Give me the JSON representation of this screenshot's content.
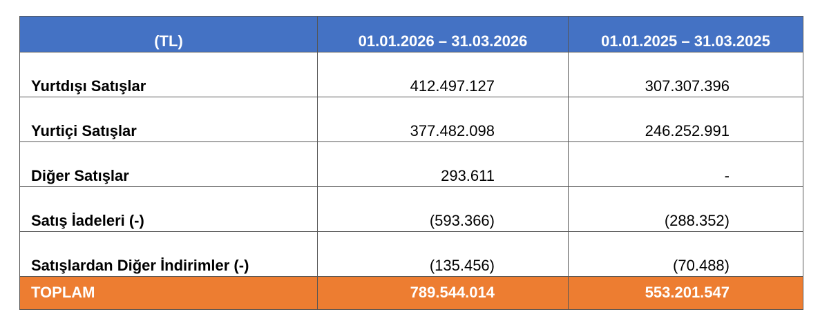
{
  "table": {
    "header": [
      "(TL)",
      "01.01.2026 – 31.03.2026",
      "01.01.2025 – 31.03.2025"
    ],
    "rows": [
      [
        "Yurtdışı Satışlar",
        "412.497.127",
        "307.307.396"
      ],
      [
        "Yurtiçi Satışlar",
        "377.482.098",
        "246.252.991"
      ],
      [
        "Diğer Satışlar",
        "293.611",
        "-"
      ],
      [
        "Satış İadeleri (-)",
        "(593.366)",
        "(288.352)"
      ],
      [
        "Satışlardan Diğer İndirimler (-)",
        "(135.456)",
        "(70.488)"
      ]
    ],
    "total": [
      "TOPLAM",
      "789.544.014",
      "553.201.547"
    ]
  }
}
